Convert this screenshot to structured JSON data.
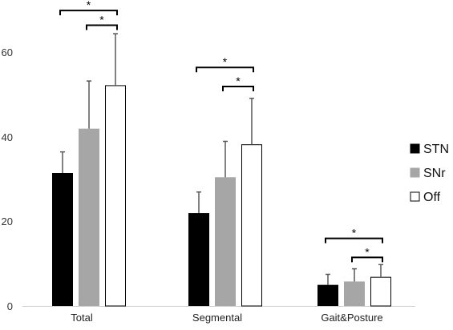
{
  "chart_data": {
    "type": "bar",
    "title": "",
    "xlabel": "",
    "ylabel": "",
    "ylim": [
      0,
      70
    ],
    "yticks": [
      0,
      20,
      40,
      60
    ],
    "grid": false,
    "legend_position": "right",
    "categories": [
      "Total",
      "Segmental",
      "Gait&Posture"
    ],
    "series": [
      {
        "name": "STN",
        "color": "#000000",
        "outline": "#000000",
        "values": [
          31.5,
          22,
          5
        ],
        "errors": [
          5,
          5,
          2.5
        ]
      },
      {
        "name": "SNr",
        "color": "#a6a6a6",
        "outline": "#a6a6a6",
        "values": [
          42,
          30.5,
          5.8
        ],
        "errors": [
          11.3,
          8.5,
          3
        ]
      },
      {
        "name": "Off",
        "color": "#ffffff",
        "outline": "#000000",
        "values": [
          52.2,
          38.2,
          6.8
        ],
        "errors": [
          12.3,
          11,
          3
        ]
      }
    ],
    "significance": [
      {
        "category": "Total",
        "from": "STN",
        "to": "Off",
        "label": "*",
        "y": 70
      },
      {
        "category": "Total",
        "from": "SNr",
        "to": "Off",
        "label": "*",
        "y": 66.5
      },
      {
        "category": "Segmental",
        "from": "STN",
        "to": "Off",
        "label": "*",
        "y": 56.5
      },
      {
        "category": "Segmental",
        "from": "SNr",
        "to": "Off",
        "label": "*",
        "y": 52
      },
      {
        "category": "Gait&Posture",
        "from": "STN",
        "to": "Off",
        "label": "*",
        "y": 16
      },
      {
        "category": "Gait&Posture",
        "from": "SNr",
        "to": "Off",
        "label": "*",
        "y": 11.5
      }
    ]
  }
}
